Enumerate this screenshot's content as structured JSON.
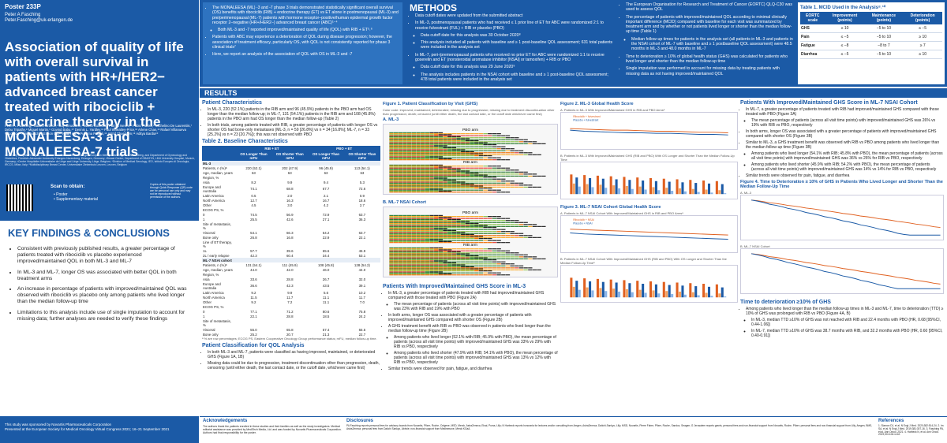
{
  "left": {
    "poster_id": "Poster 233P",
    "presenter": "Peter A Fasching",
    "email": "Peter.Fasching@uk-erlangen.de",
    "title": "Association of quality of life with overall survival in patients with HR+/HER2− advanced breast cancer treated with ribociclib + endocrine therapy in the MONALEESA-3 and MONALEESA-7 trials",
    "authors": "Peter A. Fasching,¹ Nadia Harbeck,² Guy Jerusalem,³ Marco Colleoni,⁴ Patrick Neven,⁵ Fabio Franke,⁶ Michelino De Laurentiis,⁷ Debu Tripathy,⁸ Miguel Martin,⁹ Govind Babu,¹⁰ Dennis L. Yardley,¹¹ Paul Wheatley-Price,¹² Arlene Chan,¹³ Rafael Villanueva Vázquez,¹⁴ Arnd Nusch,¹⁵ Eneon Gu,¹⁶ Huilin Hu,¹⁷ Purnima Pathak,¹⁶ Astrid Thuerigen,¹⁸ Aditya Bardia¹⁹",
    "affiliations": "¹University Hospital Erlangen, Comprehensive Cancer Center Erlangen-European Metropolitan Region of Nuremberg, and Department of Gynecology and Obstetrics, Friedrich-Alexander University Erlangen-Nuremberg, Erlangen, Germany; ²Breast Center, Department of OB&GYN, LMU University Hospital, Munich, Germany; ³Centre Hospitalier Universitaire de Liège and Liège University, Liège, Belgium; ⁴Division of Medical Senology, IEO, Istituto Europeo di Oncologia, IRCCS, Milan, Italy; ⁵Multidisciplinary Breast Center, Universitaire Ziekenhuis Leuven, Leuven, Belgium",
    "copy_note": "Copies of this poster obtained through Quick Response (QR) code are for personal use only and may not be reproduced without permission of the authors.",
    "scan_title": "Scan to obtain:",
    "scan_items": [
      "• Poster",
      "• Supplementary material"
    ],
    "key_title": "KEY FINDINGS & CONCLUSIONS",
    "key_findings": [
      "Consistent with previously published results, a greater percentage of patients treated with ribociclib vs placebo experienced improved/maintained QOL in both ML-3 and ML-7",
      "In ML-3 and ML-7, longer OS was associated with better QOL in both treatment arms",
      "An increase in percentage of patients with improved/maintained QOL was observed with ribociclib vs placebo only among patients who lived longer than the median follow-up time",
      "Limitations to this analysis include use of single imputation to account for missing data; further analyses are needed to verify these findings"
    ],
    "sponsor": "This study was sponsored by Novartis Pharmaceuticals Corporation",
    "congress": "Presented at the European Society for Medical Oncology Virtual Congress 2021; 16–21 September 2021"
  },
  "intro": {
    "bullets": [
      "The MONALEESA (ML) -3 and -7 phase 3 trials demonstrated statistically significant overall survival (OS) benefits with ribociclib (RIB) + endocrine therapy (ET) vs ET alone in postmenopausal (ML-3) and pre/perimenopausal (ML-7) patients with hormone receptor–positive/human epidermal growth factor receptor 2–negative (HR+/HER2−) advanced breast cancer (ABC)¹⁻⁴",
      "Both ML-3 and -7 reported improved/maintained quality of life (QOL) with RIB + ET⁵˒⁶",
      "Patients with ABC may experience a deterioration of QOL during disease progression; however, the association of treatment efficacy, particularly OS, with QOL is not consistently reported for phase 3 clinical trials⁷",
      "Here, we report an analysis of the association of QOL with OS in ML-3 and -7"
    ]
  },
  "methods": {
    "title": "METHODS",
    "col1": [
      "Data cutoff dates were updated from the submitted abstract",
      "In ML-3, postmenopausal patients who had received ≤ 1 prior line of ET for ABC were randomized 2:1 to receive fulvestrant (FUL) + RIB or placebo (PBO)",
      "Data cutoff date for this analysis was 30 October 2020⁸",
      "This analysis included all patients with baseline and ≥ 1 post-baseline QOL assessment; 631 total patients were included in the analysis set",
      "In ML-7, peri-/premenopausal patients who received no prior ET for ABC were randomized 1:1 to receive goserelin and ET (nonsteroidal aromatase inhibitor [NSAI] or tamoxifen) + RIB or PBO",
      "Data cutoff date for this analysis was 29 June 2020⁹",
      "The analysis includes patients in the NSAI cohort with baseline and ≥ 1 post-baseline QOL assessment; 478 total patients were included in the analysis set"
    ],
    "col2": [
      "The European Organisation for Research and Treatment of Cancer (EORTC) QLQ-C30 was used to assess QOL",
      "The percentage of patients with improved/maintained QOL according to minimal clinically important difference (MCID) compared with baseline for each visit was summarized by treatment arm and by whether or not patients lived longer or shorter than the median follow-up time (Table 1)",
      "Median follow-up times for patients in the analysis set (all patients in ML-3 and patients in the NSAI cohort of ML-7 with baseline and ≥ 1 postbaseline QOL assessment) were 48.5 months in ML-3 and 48.0 months in ML-7",
      "Time to deterioration ≥ 10% of global health status (GHS) was calculated for patients who lived longer and shorter than the median follow-up time",
      "Single imputation was performed to account for missing data by treating patients with missing data as not having improved/maintained QOL"
    ]
  },
  "mcid": {
    "title": "Table 1. MCID Used in the Analysis⁸˒¹⁰",
    "headers": [
      "EORTC scale",
      "Improvement (points)",
      "Maintenance (points)",
      "Deterioration (points)"
    ],
    "rows": [
      [
        "GHS",
        "≥ 10",
        "−5 to 10",
        "≤ −5"
      ],
      [
        "Pain",
        "≤ −5",
        "−5 to 10",
        "≥ 10"
      ],
      [
        "Fatigue",
        "≤ −8",
        "−8 to 7",
        "≥ 7"
      ],
      [
        "Diarrhea",
        "≤ −5",
        "−5 to 10",
        "≥ 10"
      ]
    ]
  },
  "results": {
    "bar": "RESULTS",
    "patient_char_title": "Patient Characteristics",
    "patient_char": [
      "In ML-3, 220 (52.1%) patients in the RIB arm and 96 (45.9%) patients in the PBO arm had OS longer than the median follow-up; in ML-7, 131 (54.1%) patients in the RIB arm and 108 (45.8%) patients in the PBO arm had OS longer than the median follow-up (Table 2)",
      "In both trials, among patients treated with RIB, a greater percentage of patients with longer OS vs shorter OS had bone-only metastases (ML-3, n = 59 [26.8%] vs n = 34 [16.8%]; ML-7, n = 33 [25.2%] vs n = 23 [20.7%]); this was not observed with PBO"
    ],
    "table2_title": "Table 2. Baseline Characteristics",
    "table2_groups": [
      "RIB + ET",
      "PBO + ET"
    ],
    "table2_headers": [
      "",
      "OS Longer Than mFU",
      "OS Shorter Than mFU",
      "OS Longer Than mFU",
      "OS Shorter Than mFU"
    ],
    "table2_rows": [
      {
        "sec": true,
        "cells": [
          "ML-3"
        ]
      },
      {
        "cells": [
          "Patients, n (%)ᵃ",
          "220 (52.1)",
          "202 (47.9)",
          "96 (45.9)",
          "113 (54.1)"
        ]
      },
      {
        "cells": [
          "Age, median, years",
          "63",
          "63",
          "63",
          "63"
        ]
      },
      {
        "cells": [
          "Region, %",
          "",
          "",
          "",
          ""
        ]
      },
      {
        "cells": [
          "  Asia",
          "8.2",
          "9.9",
          "9.4",
          "5.3"
        ]
      },
      {
        "cells": [
          "  Europe and Australia",
          "74.1",
          "68.8",
          "67.7",
          "72.6"
        ]
      },
      {
        "cells": [
          "  Latin America",
          "0.5",
          "2.0",
          "2.1",
          "0.9"
        ]
      },
      {
        "cells": [
          "  North America",
          "12.7",
          "16.3",
          "16.7",
          "18.6"
        ]
      },
      {
        "cells": [
          "  Other",
          "4.5",
          "3.0",
          "4.2",
          "2.7"
        ]
      },
      {
        "cells": [
          "ECOG PS, %",
          "",
          "",
          "",
          ""
        ]
      },
      {
        "cells": [
          "  0",
          "74.5",
          "56.9",
          "72.9",
          "63.7"
        ]
      },
      {
        "cells": [
          "  1",
          "25.5",
          "42.6",
          "27.1",
          "36.3"
        ]
      },
      {
        "cells": [
          "Site of metastasis, %",
          "",
          "",
          "",
          ""
        ]
      },
      {
        "cells": [
          "  Visceral",
          "54.1",
          "66.3",
          "54.2",
          "63.7"
        ]
      },
      {
        "cells": [
          "  Bone only",
          "26.8",
          "16.8",
          "22.9",
          "22.1"
        ]
      },
      {
        "cells": [
          "Line of ET therapy, %",
          "",
          "",
          "",
          ""
        ]
      },
      {
        "cells": [
          "  1L",
          "57.7",
          "39.6",
          "65.6",
          "46.9"
        ]
      },
      {
        "cells": [
          "  2L / early relapse",
          "42.3",
          "60.4",
          "34.4",
          "53.1"
        ]
      },
      {
        "sec": true,
        "cells": [
          "ML-7 NSAI cohort"
        ]
      },
      {
        "cells": [
          "Patients, n (%)ᵃ",
          "131 (54.1)",
          "111 (45.9)",
          "108 (45.8)",
          "128 (54.2)"
        ]
      },
      {
        "cells": [
          "Age, median, years",
          "44.0",
          "42.0",
          "46.0",
          "44.0"
        ]
      },
      {
        "cells": [
          "Region, %",
          "",
          "",
          "",
          ""
        ]
      },
      {
        "cells": [
          "  Asia",
          "33.6",
          "28.8",
          "26.7",
          "32.0"
        ]
      },
      {
        "cells": [
          "  Europe and Australia",
          "36.6",
          "42.3",
          "43.5",
          "39.1"
        ]
      },
      {
        "cells": [
          "  Latin America",
          "9.2",
          "9.9",
          "5.6",
          "10.2"
        ]
      },
      {
        "cells": [
          "  North America",
          "11.5",
          "11.7",
          "11.1",
          "11.7"
        ]
      },
      {
        "cells": [
          "  Other",
          "9.2",
          "7.2",
          "11.1",
          "7.0"
        ]
      },
      {
        "cells": [
          "ECOG PS, %",
          "",
          "",
          "",
          ""
        ]
      },
      {
        "cells": [
          "  0",
          "77.1",
          "71.2",
          "80.6",
          "75.8"
        ]
      },
      {
        "cells": [
          "  1",
          "22.1",
          "28.8",
          "18.5",
          "24.2"
        ]
      },
      {
        "cells": [
          "Site of metastasis, %",
          "",
          "",
          "",
          ""
        ]
      },
      {
        "cells": [
          "  Visceral",
          "55.0",
          "65.8",
          "57.4",
          "55.5"
        ]
      },
      {
        "cells": [
          "  Bone only",
          "25.2",
          "20.7",
          "21.3",
          "22.7"
        ]
      }
    ],
    "table2_note": "ᵃ % are row percentages; ECOG PS, Eastern Cooperative Oncology Group performance status; mFU, median follow-up time.",
    "classif_title": "Patient Classification for QOL Analysis",
    "classif": [
      "In both ML-3 and ML-7, patients were classified as having improved, maintained, or deteriorated GHS (Figure 1A, 1B)",
      "Missing data could be due to progression, treatment discontinuation other than progression, death, censoring (until either death, the last contact date, or the cutoff date, whichever came first)"
    ],
    "fig1_title": "Figure 1. Patient Classification by Visit (GHS)",
    "fig1_legend": "Color code: improved; maintained; deteriorated; missing due to progression; missing due to treatment discontinuation other than progression; death; censored (until either death, the last contact date, or the cutoff date whichever came first)",
    "fig1_panel_a": "A. ML-3",
    "fig1_panel_b": "B. ML-7 NSAI Cohort",
    "pbo_arm": "PBO arm",
    "rib_arm": "RIB arm",
    "ghs_ml3_title": "Patients With Improved/Maintained GHS Score in ML-3",
    "ghs_ml3": [
      "In ML-3, a greater percentage of patients treated with RIB had improved/maintained GHS compared with those treated with PBO (Figure 2A)",
      "The mean percentage of patients (across all visit time points) with improved/maintained GHS was 23% with RIB and 19% with PBO",
      "In both arms, longer OS was associated with a greater percentage of patients with improved/maintained GHS compared with shorter OS (Figure 2B)",
      "A GHS treatment benefit with RIB vs PBO was observed in patients who lived longer than the median follow-up time (Figure 2B)",
      "Among patients who lived longer (52.1% with RIB; 45.9% with PBO), the mean percentage of patients (across all visit time points) with improved/maintained GHS was 33% vs 29% with RIB vs PBO, respectively",
      "Among patients who lived shorter (47.9% with RIB; 54.1% with PBO), the mean percentage of patients (across all visit time points) with improved/maintained GHS was 13% vs 12% with RIB vs PBO, respectively",
      "Similar trends were observed for pain, fatigue, and diarrhea"
    ],
    "fig2_title": "Figure 2. ML-3 Global Health Score",
    "fig2a": "A. Patients in ML-3 With Improved/Maintained GHS in RIB and PBO Armsᵃ",
    "fig2b": "B. Patients in ML-3 With Improved/Maintained GHS (RIB and PBO) With OS Longer and Shorter Than the Median Follow-Up Time",
    "fig3_title": "Figure 3. ML-7 NSAI Cohort Global Health Score",
    "fig3a": "A. Patients in ML-7 NSAI Cohort With Improved/Maintained GHS in RIB and PBO Armsᵃ",
    "fig3b": "B. Patients in ML-7 NSAI Cohort With Improved/Maintained GHS (RIB and PBO) With OS Longer and Shorter Than the Median Follow-Up Timeᵃ",
    "ml7_title": "Patients With Improved/Maintained GHS Score in ML-7 NSAI Cohort",
    "ml7": [
      "In ML-7, a greater percentage of patients treated with RIB had improved/maintained GHS compared with those treated with PBO (Figure 3A)",
      "The mean percentage of patients (across all visit time points) with improved/maintained GHS was 26% vs 19% with RIB vs PBO, respectively",
      "In both arms, longer OS was associated with a greater percentage of patients with improved/maintained GHS compared with shorter OS (Figure 3B)",
      "Similar to ML-3, a GHS treatment benefit was observed with RIB vs PBO among patients who lived longer than the median follow-up time (Figure 3B)",
      "Among patients who lived longer (54.1% with RIB; 45.8% with PBO), the mean percentage of patients (across all visit time points) with improved/maintained GHS was 36% vs 26% for RIB vs PBO, respectively",
      "Among patients who lived shorter (45.9% with RIB; 54.2% with PBO), the mean percentage of patients (across all visit time points) with improved/maintained GHS was 14% vs 14% for RIB vs PBO, respectively",
      "Similar trends were observed for pain, fatigue, and diarrhea"
    ],
    "fig4_title": "Figure 4. Time to Deterioration ≥ 10% of GHS in Patients Who Lived Longer and Shorter Than the Median Follow-Up Time",
    "fig4a": "A. ML-3",
    "fig4b": "B. ML-7 NSAI Cohort",
    "ttd_title": "Time to deterioration ≥10% of GHS",
    "ttd": [
      "Among patients who lived longer than the median follow-up times in ML-3 and ML-7, time to deterioration (TTD) ≥ 10% of GHS was prolonged with RIB vs PBO (Figure 4A, B)",
      "In ML-3, median TTD ≥10% of GHS was not reached with RIB and 22.4 months with PBO (HR, 0.68 [95%CI, 0.44-1.06])",
      "In ML-7, median TTD ≥10% of GHS was 38.7 months with RIB, and 32.2 months with PBO (HR, 0.60 [95%CI, 0.40-0.91])"
    ]
  },
  "footer": {
    "ack_title": "Acknowledgements",
    "ack": "The authors thank the patients enrolled in these studies and their families as well as the study investigators. Medical editorial assistance was provided by MediTech Media, Ltd. and was funded by Novartis Pharmaceuticals Corporation. Authors had final responsibility for the poster.",
    "disc_title": "Disclosures",
    "disc": "PA Fasching reports personal fees for advisory boards from Novartis, Pfizer, Roche, Celgene, MSD, Merck, AstraZeneca, Eisai, Puma, Lilly; N Harbeck reports honoraria for lectures and/or consulting from Amgen, AstraZeneca, Daiichi-Sankyo, Lilly, MSD, Novartis, Pierre Fabre, Pfizer, Roche, Sandoz, Seagen; G Jerusalem reports grants, personal fees and non-financial support from Novartis, Roche, Pfizer; personal fees and non-financial support from Lilly, Amgen, BMS, AstraZeneca; personal fees from Daiichi Sankyo, Abbvie; non-financial support from Medimmune, Merck KGaA.",
    "ref_title": "References",
    "ref": "1. Slamon DJ, et al. N Engl J Med. 2020;382:514-24. 2. Im SA, et al. N Engl J Med. 2019;381:307-16. 3. Fasching PA, et al. Ann Oncol. 2021. 4. Harbeck N, et al. Ann Oncol. 2019;30:v104-v142."
  },
  "chart_data": [
    {
      "type": "line",
      "title": "A. Patients in ML-3 With Improved/Maintained GHS in RIB and PBO Arms",
      "series": [
        {
          "name": "Ribociclib + fulvestrant",
          "values": [
            27,
            26,
            25,
            24,
            24,
            23,
            22,
            22,
            21,
            20,
            20,
            19
          ]
        },
        {
          "name": "Placebo + fulvestrant",
          "values": [
            24,
            22,
            21,
            20,
            19,
            19,
            18,
            18,
            17,
            16,
            16,
            15
          ]
        }
      ],
      "ylim": [
        0,
        100
      ]
    },
    {
      "type": "line",
      "title": "A. Patients in ML-7 NSAI Cohort With Improved/Maintained GHS in RIB and PBO Arms",
      "series": [
        {
          "name": "Ribociclib + NSAI",
          "values": [
            32,
            31,
            30,
            29,
            28,
            27,
            26,
            25,
            24,
            23,
            22,
            21
          ]
        },
        {
          "name": "Placebo + NSAI",
          "values": [
            25,
            23,
            22,
            21,
            20,
            19,
            18,
            17,
            16,
            15,
            14,
            13
          ]
        }
      ],
      "ylim": [
        0,
        100
      ]
    }
  ]
}
